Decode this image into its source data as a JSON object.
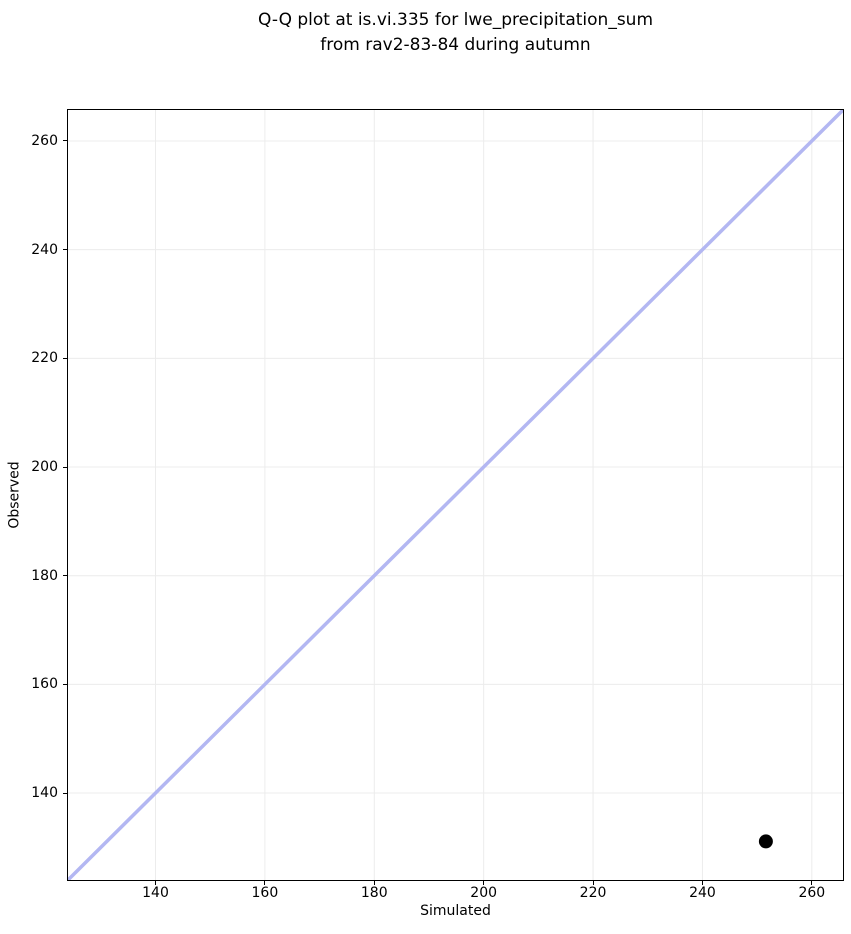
{
  "chart_data": {
    "type": "scatter",
    "title_lines": [
      "Q-Q plot at is.vi.335 for lwe_precipitation_sum",
      "from rav2-83-84 during autumn"
    ],
    "xlabel": "Simulated",
    "ylabel": "Observed",
    "xlim": [
      124,
      265.7
    ],
    "ylim": [
      124,
      265.7
    ],
    "xticks": [
      140,
      160,
      180,
      200,
      220,
      240,
      260
    ],
    "yticks": [
      140,
      160,
      180,
      200,
      220,
      240,
      260
    ],
    "grid": true,
    "legend": false,
    "series": [
      {
        "name": "identity_line",
        "type": "line",
        "color": "#b3b7f2",
        "line_width": 3.5,
        "points": [
          [
            124,
            124
          ],
          [
            265.7,
            265.7
          ]
        ]
      },
      {
        "name": "quantile_points",
        "type": "scatter",
        "color": "#000000",
        "marker": "circle",
        "marker_diameter_px": 14,
        "points": [
          [
            251.6,
            131.1
          ]
        ]
      }
    ],
    "colors": {
      "background": "#ffffff",
      "grid": "#ececec",
      "spine": "#000000",
      "text": "#000000"
    }
  }
}
